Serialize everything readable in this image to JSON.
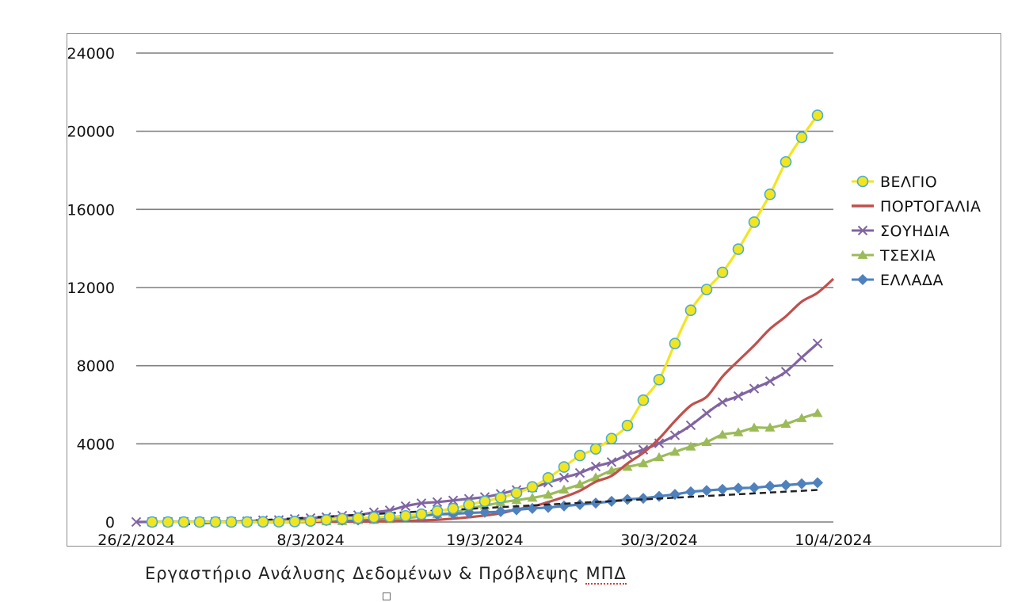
{
  "chart_data": {
    "type": "line",
    "title": "",
    "xlabel": "",
    "ylabel": "",
    "ylim": [
      0,
      24000
    ],
    "yticks": [
      "0",
      "4000",
      "8000",
      "12000",
      "16000",
      "20000",
      "24000"
    ],
    "xticks": [
      "26/2/2024",
      "8/3/2024",
      "19/3/2024",
      "30/3/2024",
      "10/4/2024"
    ],
    "xrange_days": [
      0,
      44
    ],
    "grid": true,
    "legend_position": "right",
    "x_dates_start": "26/2/2024",
    "series": [
      {
        "name": "ΒΕΛΓΙΟ",
        "color": "#f2e51f",
        "marker": "circle",
        "x": [
          1,
          2,
          3,
          4,
          5,
          6,
          7,
          8,
          9,
          10,
          11,
          12,
          13,
          14,
          15,
          16,
          17,
          18,
          19,
          20,
          21,
          22,
          23,
          24,
          25,
          26,
          27,
          28,
          29,
          30,
          31,
          32,
          33,
          34,
          35,
          36,
          37,
          38,
          39,
          40,
          41,
          42,
          43
        ],
        "y": [
          0,
          0,
          0,
          0,
          0,
          1,
          2,
          8,
          13,
          23,
          50,
          109,
          169,
          200,
          239,
          267,
          314,
          399,
          559,
          689,
          886,
          1058,
          1243,
          1486,
          1795,
          2257,
          2815,
          3401,
          3743,
          4269,
          4937,
          6235,
          7284,
          9134,
          10836,
          11899,
          12775,
          13964,
          15348,
          16770,
          18431,
          19691,
          20814
        ]
      },
      {
        "name": "ΠΟΡΤΟΓΑΛΙΑ",
        "color": "#c0504d",
        "marker": "none",
        "x": [
          5,
          6,
          7,
          8,
          9,
          10,
          11,
          12,
          13,
          14,
          15,
          16,
          17,
          18,
          19,
          20,
          21,
          22,
          23,
          24,
          25,
          26,
          27,
          28,
          29,
          30,
          31,
          32,
          33,
          34,
          35,
          36,
          37,
          38,
          39,
          40,
          41,
          42,
          43,
          44
        ],
        "y": [
          0,
          0,
          0,
          0,
          2,
          4,
          6,
          9,
          13,
          21,
          30,
          41,
          59,
          78,
          112,
          169,
          245,
          331,
          448,
          642,
          785,
          1020,
          1280,
          1600,
          2060,
          2362,
          2995,
          3544,
          4268,
          5170,
          5962,
          6408,
          7443,
          8251,
          9034,
          9886,
          10524,
          11278,
          11730,
          12442
        ]
      },
      {
        "name": "ΣΟΥΗΔΙΑ",
        "color": "#8064a2",
        "marker": "x",
        "x": [
          0,
          1,
          2,
          3,
          4,
          5,
          6,
          7,
          8,
          9,
          10,
          11,
          12,
          13,
          14,
          15,
          16,
          17,
          18,
          19,
          20,
          21,
          22,
          23,
          24,
          25,
          26,
          27,
          28,
          29,
          30,
          31,
          32,
          33,
          34,
          35,
          36,
          37,
          38,
          39,
          40,
          41,
          42,
          43
        ],
        "y": [
          1,
          7,
          7,
          12,
          14,
          15,
          21,
          35,
          94,
          101,
          161,
          203,
          248,
          326,
          352,
          500,
          599,
          814,
          961,
          1022,
          1103,
          1190,
          1279,
          1439,
          1639,
          1763,
          2016,
          2272,
          2510,
          2840,
          3069,
          3447,
          3700,
          4028,
          4435,
          4947,
          5568,
          6131,
          6443,
          6830,
          7206,
          7693,
          8419,
          9141
        ]
      },
      {
        "name": "ΤΣΕΧΙΑ",
        "color": "#9bbb59",
        "marker": "triangle",
        "x": [
          5,
          6,
          7,
          8,
          9,
          10,
          11,
          12,
          13,
          14,
          15,
          16,
          17,
          18,
          19,
          20,
          21,
          22,
          23,
          24,
          25,
          26,
          27,
          28,
          29,
          30,
          31,
          32,
          33,
          34,
          35,
          36,
          37,
          38,
          39,
          40,
          41,
          42,
          43
        ],
        "y": [
          0,
          0,
          3,
          5,
          8,
          19,
          31,
          31,
          41,
          91,
          94,
          141,
          189,
          298,
          396,
          464,
          694,
          833,
          995,
          1120,
          1236,
          1394,
          1654,
          1925,
          2279,
          2631,
          2817,
          3001,
          3308,
          3589,
          3858,
          4091,
          4472,
          4587,
          4822,
          4828,
          5017,
          5312,
          5569
        ]
      },
      {
        "name": "ΕΛΛΑΔΑ",
        "color": "#4f81bd",
        "marker": "diamond",
        "x": [
          1,
          2,
          3,
          4,
          5,
          6,
          7,
          8,
          9,
          10,
          11,
          12,
          13,
          14,
          15,
          16,
          17,
          18,
          19,
          20,
          21,
          22,
          23,
          24,
          25,
          26,
          27,
          28,
          29,
          30,
          31,
          32,
          33,
          34,
          35,
          36,
          37,
          38,
          39,
          40,
          41,
          42,
          43
        ],
        "y": [
          3,
          4,
          4,
          7,
          7,
          7,
          9,
          31,
          45,
          46,
          73,
          73,
          89,
          99,
          190,
          228,
          331,
          352,
          387,
          418,
          464,
          495,
          530,
          624,
          695,
          743,
          821,
          892,
          966,
          1061,
          1156,
          1212,
          1314,
          1415,
          1544,
          1613,
          1673,
          1735,
          1755,
          1832,
          1884,
          1955,
          2011
        ]
      }
    ],
    "trendline": {
      "series": "ΕΛΛΑΔΑ",
      "color": "#222222",
      "style": "dashed",
      "x": [
        3,
        43
      ],
      "y": [
        -120,
        1640
      ]
    }
  },
  "caption": {
    "text": "Εργαστήριο Ανάλυσης Δεδομένων & Πρόβλεψης ",
    "mark": "ΜΠΔ"
  }
}
